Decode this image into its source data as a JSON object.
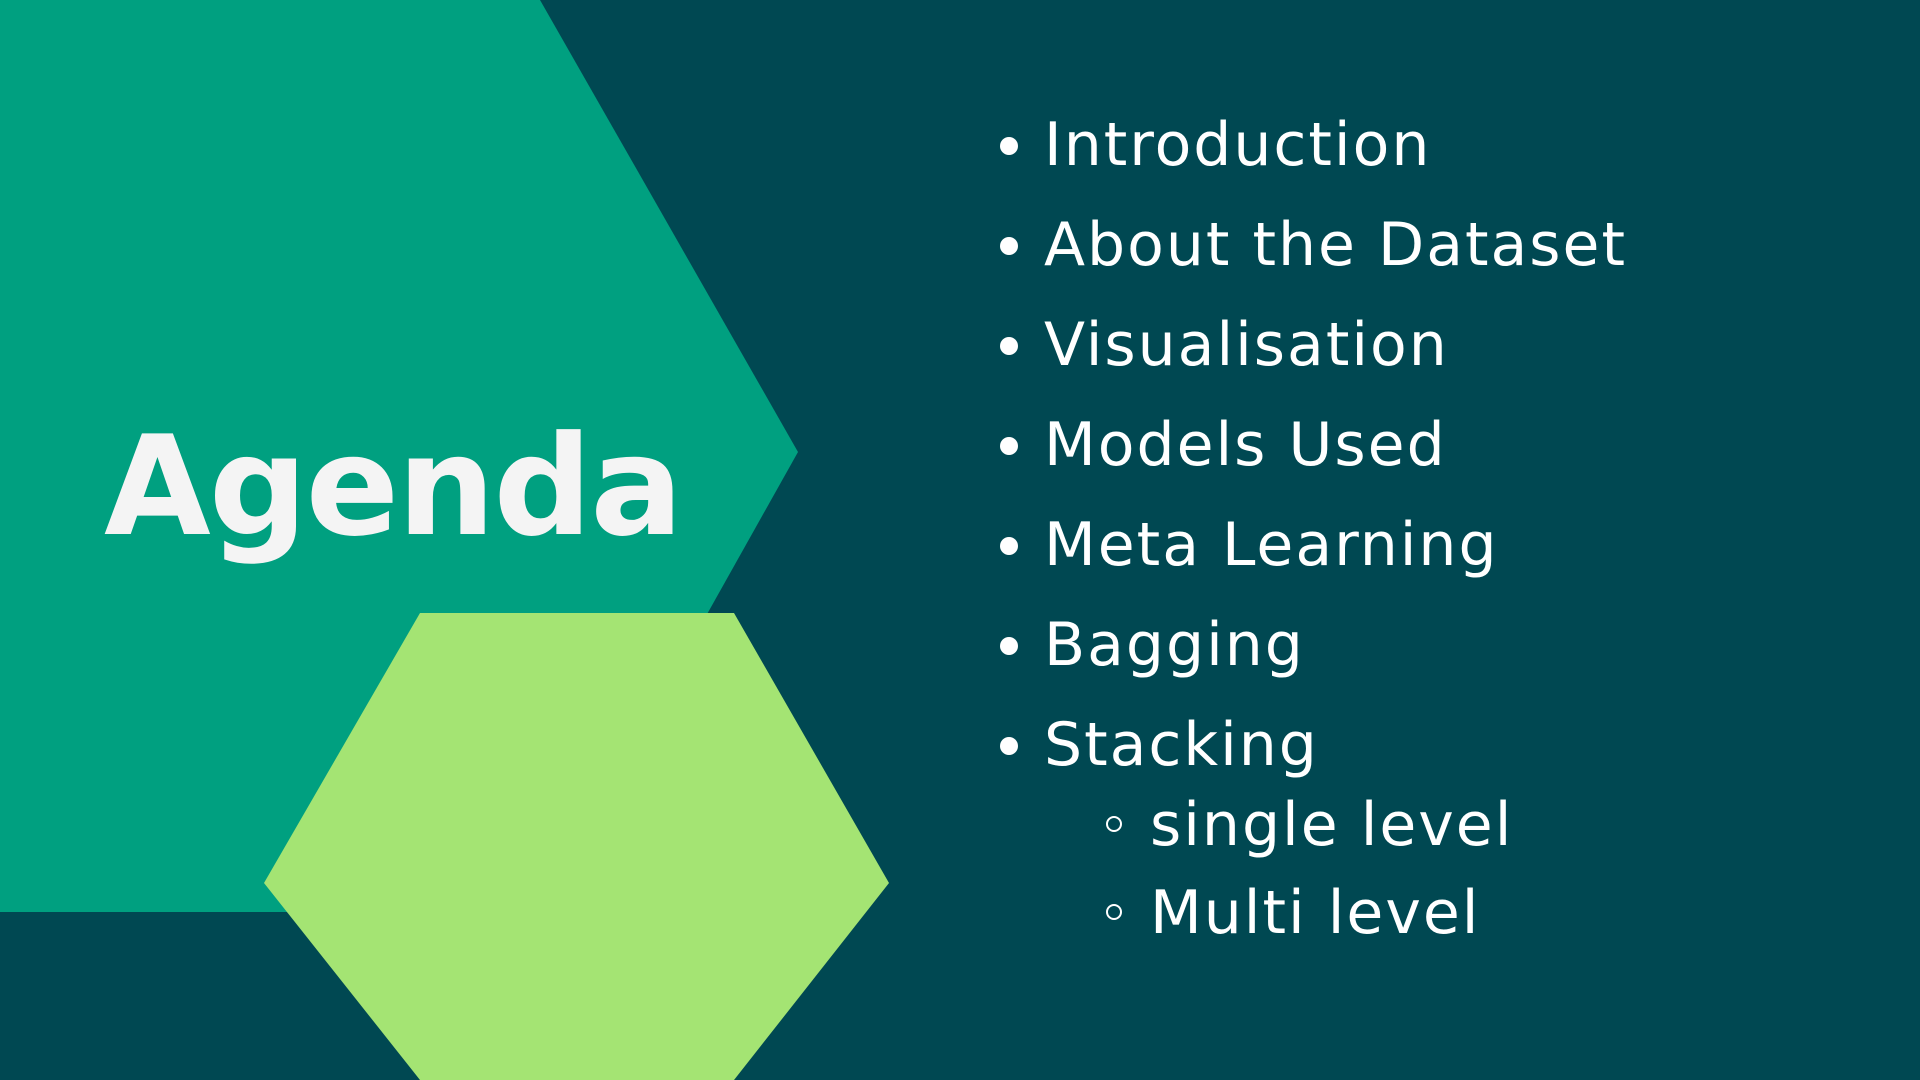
{
  "slide": {
    "title": "Agenda",
    "items": [
      {
        "label": "Introduction"
      },
      {
        "label": "About the Dataset"
      },
      {
        "label": "Visualisation"
      },
      {
        "label": "Models Used"
      },
      {
        "label": "Meta Learning"
      },
      {
        "label": "Bagging"
      },
      {
        "label": "Stacking",
        "subitems": [
          "single level",
          "Multi level"
        ]
      }
    ]
  },
  "colors": {
    "background": "#004852",
    "large_hexagon": "#00a080",
    "small_hexagon": "#a4e473",
    "title_text": "#f4f4f4",
    "list_text": "#ffffff"
  }
}
